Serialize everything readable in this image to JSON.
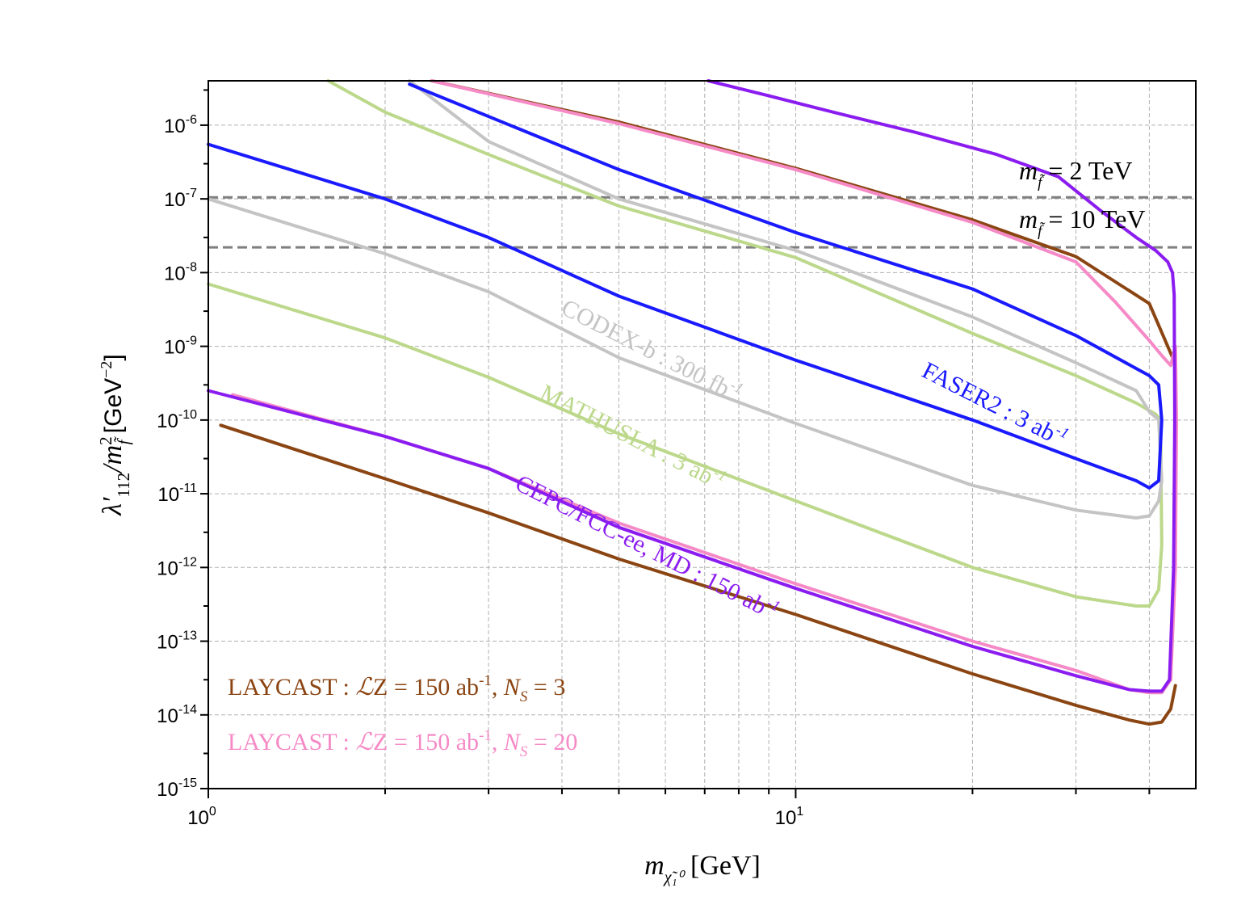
{
  "chart_data": {
    "type": "line",
    "xscale": "log",
    "yscale": "log",
    "xlim": [
      1,
      48
    ],
    "ylim": [
      1e-15,
      4e-06
    ],
    "xlabel": {
      "sym": "m",
      "sub": "χ̃₁⁰",
      "unit": "[GeV]"
    },
    "ylabel": {
      "sym": "λ′",
      "sub": "112",
      "mid": "/m",
      "msub": "f̃",
      "msup": "2",
      "unit": "[GeV",
      "unitsup": "−2",
      "close": "]"
    },
    "x_ticks": [
      {
        "value": 1,
        "base": "10",
        "exp": "0"
      },
      {
        "value": 10,
        "base": "10",
        "exp": "1"
      }
    ],
    "y_ticks": [
      {
        "value": 1e-06,
        "base": "10",
        "exp": "-6"
      },
      {
        "value": 1e-07,
        "base": "10",
        "exp": "-7"
      },
      {
        "value": 1e-08,
        "base": "10",
        "exp": "-8"
      },
      {
        "value": 1e-09,
        "base": "10",
        "exp": "-9"
      },
      {
        "value": 1e-10,
        "base": "10",
        "exp": "-10"
      },
      {
        "value": 1e-11,
        "base": "10",
        "exp": "-11"
      },
      {
        "value": 1e-12,
        "base": "10",
        "exp": "-12"
      },
      {
        "value": 1e-13,
        "base": "10",
        "exp": "-13"
      },
      {
        "value": 1e-14,
        "base": "10",
        "exp": "-14"
      },
      {
        "value": 1e-15,
        "base": "10",
        "exp": "-15"
      }
    ],
    "grid": true,
    "reference_lines": [
      {
        "value": 1.05e-07,
        "label_sym": "m",
        "label_sub": "f̃",
        "label_text": " = 2 TeV",
        "color": "#7f7f7f"
      },
      {
        "value": 2.2e-08,
        "label_sym": "m",
        "label_sub": "f̃",
        "label_text": " = 10 TeV",
        "color": "#7f7f7f"
      }
    ],
    "series": [
      {
        "name": "LAYCAST : ℒZ = 150 ab-1, N_S = 3 (upper)",
        "color": "#8b4513",
        "x": [
          2.4,
          5,
          10,
          20,
          30,
          40,
          43,
          44
        ],
        "y": [
          4e-06,
          1.1e-06,
          2.6e-07,
          5.2e-08,
          1.65e-08,
          3.8e-09,
          1e-09,
          6.5e-10
        ]
      },
      {
        "name": "LAYCAST : ℒZ = 150 ab-1, N_S = 3 (lower)",
        "color": "#8b4513",
        "x": [
          1.05,
          2,
          3,
          5,
          10,
          20,
          30,
          37,
          40,
          42,
          43.5,
          44.3
        ],
        "y": [
          8.5e-11,
          1.6e-11,
          5.5e-12,
          1.3e-12,
          2.3e-13,
          3.6e-14,
          1.35e-14,
          8.5e-15,
          7.5e-15,
          8e-15,
          1.2e-14,
          2.5e-14
        ]
      },
      {
        "name": "LAYCAST : ℒZ = 150 ab-1, N_S = 20",
        "color": "#f58ac6",
        "x": [
          1.1,
          2,
          3,
          5,
          10,
          20,
          30,
          37,
          40,
          42,
          43.5,
          44.3,
          44.5,
          44.3,
          43.5,
          42,
          40,
          35,
          30,
          20,
          10,
          5,
          2.4
        ],
        "y": [
          2.2e-10,
          6e-11,
          2.2e-11,
          4e-12,
          6e-13,
          1e-13,
          4e-14,
          2.2e-14,
          2e-14,
          2e-14,
          3e-14,
          1e-12,
          1e-10,
          1e-09,
          5.5e-10,
          7.5e-10,
          1.2e-09,
          4e-09,
          1.4e-08,
          4.8e-08,
          2.5e-07,
          1.05e-06,
          4e-06
        ]
      },
      {
        "name": "CEPC/FCC-ee, MD : 150 ab-1",
        "color": "#8b1cf0",
        "x": [
          1,
          2,
          3,
          5,
          10,
          20,
          30,
          37,
          40,
          42,
          43.3,
          44,
          44.2,
          44.1,
          43.8,
          43,
          41,
          38,
          33,
          28,
          22,
          16,
          12,
          9,
          7.1
        ],
        "y": [
          2.5e-10,
          6e-11,
          2.2e-11,
          3.5e-12,
          5.2e-13,
          8.5e-14,
          3.4e-14,
          2.2e-14,
          2.1e-14,
          2.1e-14,
          3e-14,
          1e-12,
          1e-10,
          5e-09,
          1e-08,
          1.4e-08,
          2e-08,
          3e-08,
          7e-08,
          2e-07,
          4e-07,
          8e-07,
          1.4e-06,
          2.5e-06,
          4e-06
        ]
      },
      {
        "name": "FASER2 : 3 ab-1",
        "color": "#1a1aff",
        "x": [
          1,
          2,
          3,
          5,
          10,
          20,
          30,
          38,
          40,
          41.5,
          42,
          41.5,
          40,
          38,
          30,
          20,
          10,
          5,
          2.2
        ],
        "y": [
          5.5e-07,
          1e-07,
          3e-08,
          4.8e-09,
          6.5e-10,
          1e-10,
          3e-11,
          1.5e-11,
          1.2e-11,
          1.5e-11,
          1e-10,
          3e-10,
          4e-10,
          5e-10,
          1.4e-09,
          6e-09,
          3.5e-08,
          2.5e-07,
          3.6e-06
        ]
      },
      {
        "name": "CODEX-b : 300 fb-1",
        "color": "#c4c4c4",
        "x": [
          1,
          2,
          3,
          5,
          10,
          20,
          30,
          38,
          40,
          41.5,
          42,
          41.5,
          40,
          38,
          30,
          20,
          10,
          5,
          3,
          2.2
        ],
        "y": [
          1e-07,
          1.8e-08,
          5.5e-09,
          7e-10,
          9e-11,
          1.3e-11,
          6e-12,
          4.7e-12,
          5e-12,
          8e-12,
          1.5e-11,
          1e-10,
          1.3e-10,
          2.5e-10,
          6e-10,
          2.5e-09,
          2e-08,
          1e-07,
          6e-07,
          4e-06
        ]
      },
      {
        "name": "MATHUSLA : 3 ab-1",
        "color": "#bcd88b",
        "x": [
          1,
          2,
          3,
          5,
          10,
          20,
          30,
          38,
          40,
          41.5,
          42,
          41.8,
          41,
          38,
          30,
          20,
          10,
          5,
          3,
          2,
          1.6
        ],
        "y": [
          7e-09,
          1.3e-09,
          3.8e-10,
          6.5e-11,
          8e-12,
          1e-12,
          4e-13,
          3e-13,
          3e-13,
          5e-13,
          2e-12,
          1e-10,
          1.2e-10,
          1.7e-10,
          4e-10,
          1.5e-09,
          1.6e-08,
          8e-08,
          4e-07,
          1.5e-06,
          4e-06
        ]
      }
    ],
    "annotations": [
      {
        "name": "CODEX-b : 300 fb",
        "sup": "-1",
        "color": "#c4c4c4",
        "x": 5.6,
        "y": 7e-10,
        "angle": 27
      },
      {
        "name": "FASER2 : 3 ab",
        "sup": "-1",
        "color": "#1a1aff",
        "x": 21.5,
        "y": 1.3e-10,
        "angle": 27
      },
      {
        "name": "MATHUSLA : 3 ab",
        "sup": "-1",
        "color": "#bcd88b",
        "x": 5.2,
        "y": 4.7e-11,
        "angle": 27
      },
      {
        "name": "CEPC/FCC-ee, MD : 150 ab",
        "sup": "-1",
        "color": "#8b1cf0",
        "x": 5.5,
        "y": 1.5e-12,
        "angle": 27
      }
    ],
    "legend": [
      {
        "color": "#8b4513",
        "prefix": "LAYCAST : ",
        "script": "ℒ",
        "mid": "Z = 150 ab",
        "sup": "-1",
        "comma": ", ",
        "ns": "N",
        "nssub": "S",
        "tail": " = 3"
      },
      {
        "color": "#f58ac6",
        "prefix": "LAYCAST : ",
        "script": "ℒ",
        "mid": "Z = 150 ab",
        "sup": "-1",
        "comma": ", ",
        "ns": "N",
        "nssub": "S",
        "tail": " = 20"
      }
    ],
    "legend_position": "bottom-left"
  }
}
